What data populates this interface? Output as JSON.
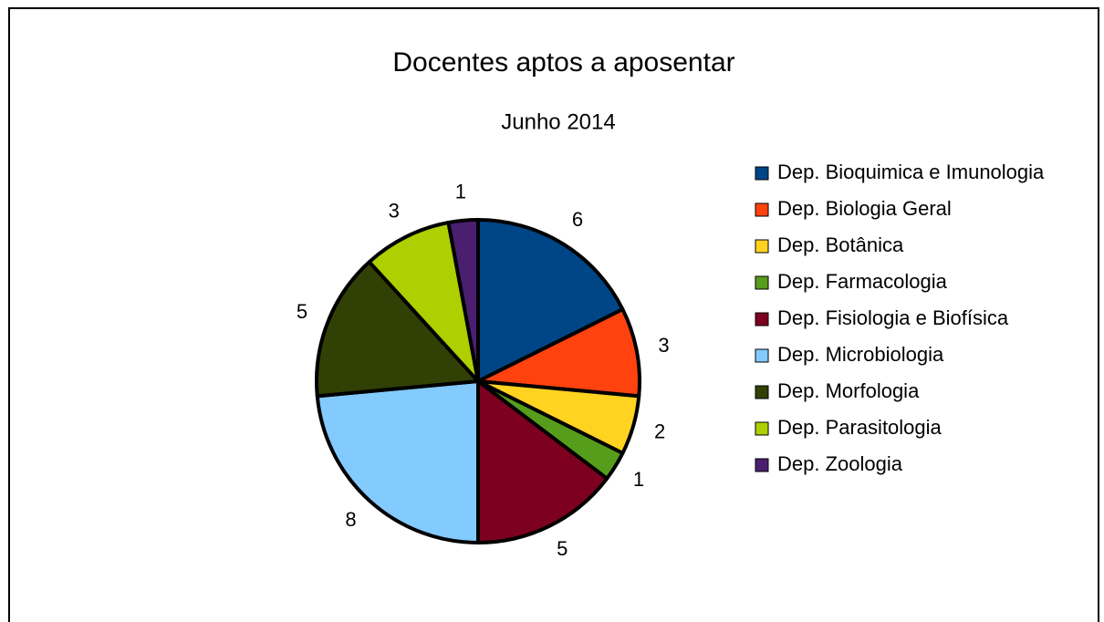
{
  "chart_data": {
    "type": "pie",
    "title": "Docentes aptos a aposentar",
    "subtitle": "Junho 2014",
    "categories": [
      "Dep. Bioquimica e Imunologia",
      "Dep. Biologia Geral",
      "Dep. Botânica",
      "Dep. Farmacologia",
      "Dep. Fisiologia e Biofísica",
      "Dep. Microbiologia",
      "Dep. Morfologia",
      "Dep. Parasitologia",
      "Dep. Zoologia"
    ],
    "values": [
      6,
      3,
      2,
      1,
      5,
      8,
      5,
      3,
      1
    ],
    "colors": [
      "#004586",
      "#ff420e",
      "#ffd320",
      "#579d1c",
      "#7e0021",
      "#83caff",
      "#314004",
      "#aecf00",
      "#4b1f6f"
    ],
    "legend": "right"
  }
}
